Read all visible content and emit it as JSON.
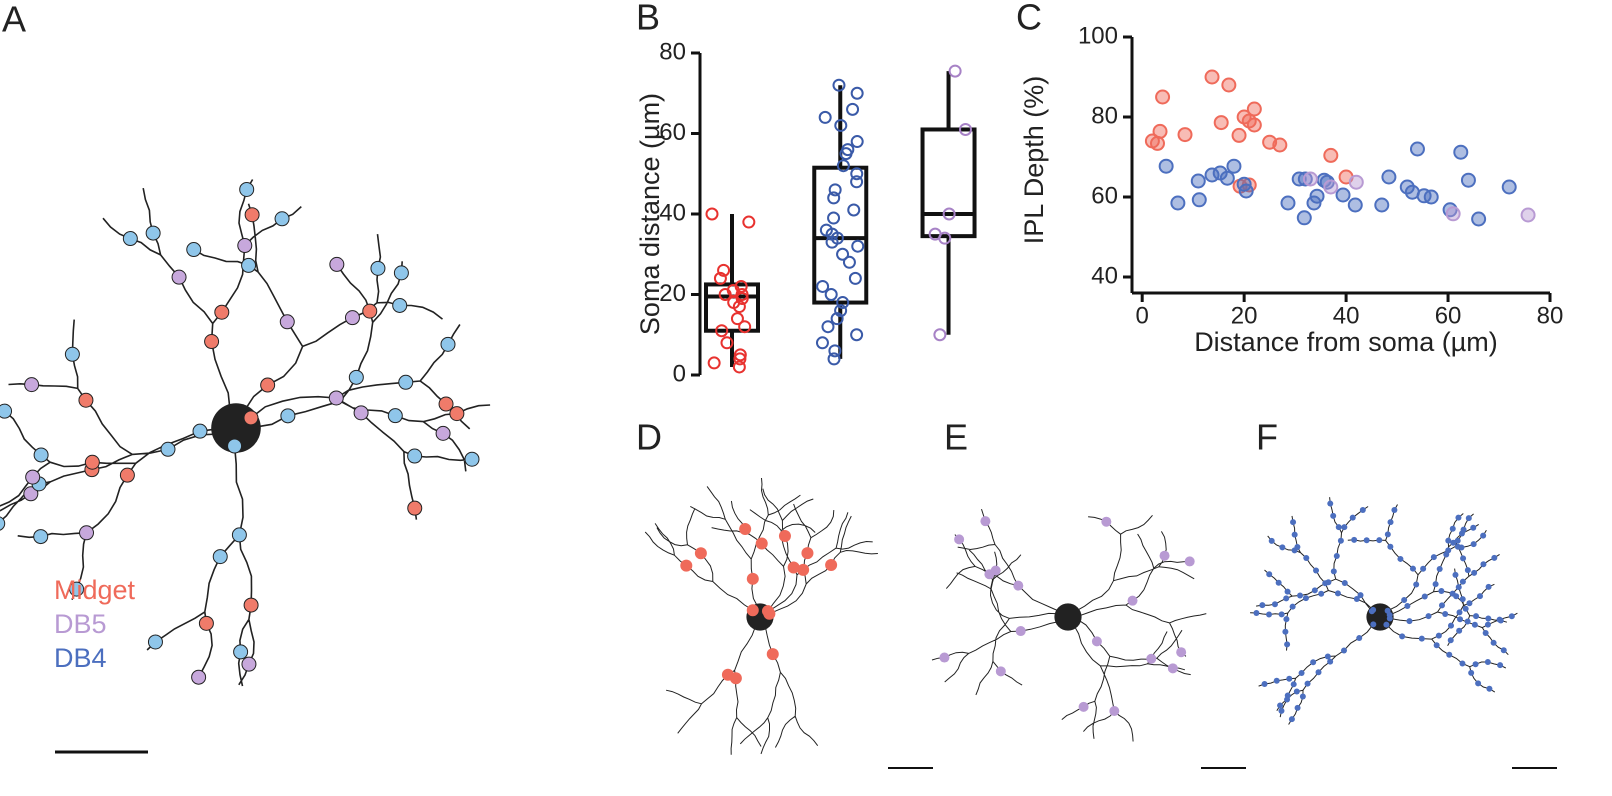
{
  "panel_labels": [
    "A",
    "B",
    "C",
    "D",
    "E",
    "F"
  ],
  "legend": [
    {
      "label": "Midget",
      "color": "#ef6a5a"
    },
    {
      "label": "DB5",
      "color": "#b89ad3"
    },
    {
      "label": "DB4",
      "color": "#4c6fbf"
    }
  ],
  "chart_data": [
    {
      "type": "box",
      "ylabel": "Soma distance (µm)",
      "ylim": [
        0,
        80
      ],
      "yticks": [
        0,
        20,
        40,
        60,
        80
      ],
      "categories": [
        null,
        null,
        null
      ],
      "boxes": [
        {
          "color": "#e8322f",
          "low": 2,
          "q1": 11,
          "median": 19.5,
          "q3": 22.5,
          "high": 40,
          "points": [
            40,
            38,
            26,
            24,
            22,
            21,
            20,
            20,
            19,
            18,
            17,
            14,
            12,
            11,
            8,
            5,
            4,
            3,
            2
          ]
        },
        {
          "color": "#3a5aa8",
          "low": 4,
          "q1": 18,
          "median": 34,
          "q3": 51.5,
          "high": 72,
          "points": [
            72,
            70,
            66,
            64,
            62,
            58,
            56,
            55,
            52,
            50,
            48,
            46,
            44,
            41,
            39,
            36,
            35,
            34,
            33,
            32,
            30,
            28,
            24,
            22,
            20,
            18,
            16,
            14,
            12,
            10,
            8,
            6,
            4
          ]
        },
        {
          "color": "#a782c6",
          "low": 10,
          "q1": 34.5,
          "median": 40,
          "q3": 61,
          "high": 75.5,
          "points": [
            75.5,
            61,
            40,
            35,
            34,
            10
          ]
        }
      ]
    },
    {
      "type": "scatter",
      "xlabel": "Distance from soma (µm)",
      "ylabel": "IPL Depth (%)",
      "xlim": [
        -2,
        80
      ],
      "xticks": [
        0,
        20,
        40,
        60,
        80
      ],
      "ylim": [
        36,
        100
      ],
      "yticks": [
        40,
        60,
        80,
        100
      ],
      "series": [
        {
          "name": "Midget",
          "color": "#ef6a5a",
          "x": [
            2,
            3,
            3.5,
            4,
            8.4,
            13.7,
            17,
            15.5,
            19,
            20,
            21,
            22,
            22,
            25,
            27,
            37,
            40,
            21,
            19.2
          ],
          "values": [
            74,
            73.4,
            76.4,
            85,
            75.6,
            90,
            88,
            78.6,
            75.4,
            80,
            79,
            82,
            78,
            73.7,
            73,
            70.4,
            65,
            63,
            62.7
          ]
        },
        {
          "name": "DB4",
          "color": "#4c6fbf",
          "x": [
            4.7,
            7,
            11,
            11.2,
            13.7,
            15.3,
            16.7,
            18,
            20,
            20.4,
            28.6,
            30.8,
            32,
            31.8,
            33.7,
            34.3,
            35.7,
            36.3,
            39.4,
            41.8,
            47,
            48.4,
            52,
            53,
            54,
            55.3,
            56.7,
            60.4,
            62.5,
            64,
            66,
            72
          ],
          "values": [
            67.7,
            58.5,
            64,
            59.3,
            65.5,
            66,
            64.7,
            67.7,
            63.2,
            61.5,
            58.5,
            64.5,
            64.5,
            54.8,
            58.5,
            60.2,
            64.2,
            63.7,
            60.5,
            58,
            58,
            65,
            62.5,
            61.2,
            72,
            60.3,
            60,
            56.8,
            71.2,
            64.2,
            54.5,
            62.5
          ]
        },
        {
          "name": "DB5",
          "color": "#b89ad3",
          "x": [
            33,
            37,
            42,
            61,
            75.7
          ],
          "values": [
            64.5,
            62.5,
            63.7,
            55.8,
            55.5
          ]
        }
      ]
    }
  ]
}
